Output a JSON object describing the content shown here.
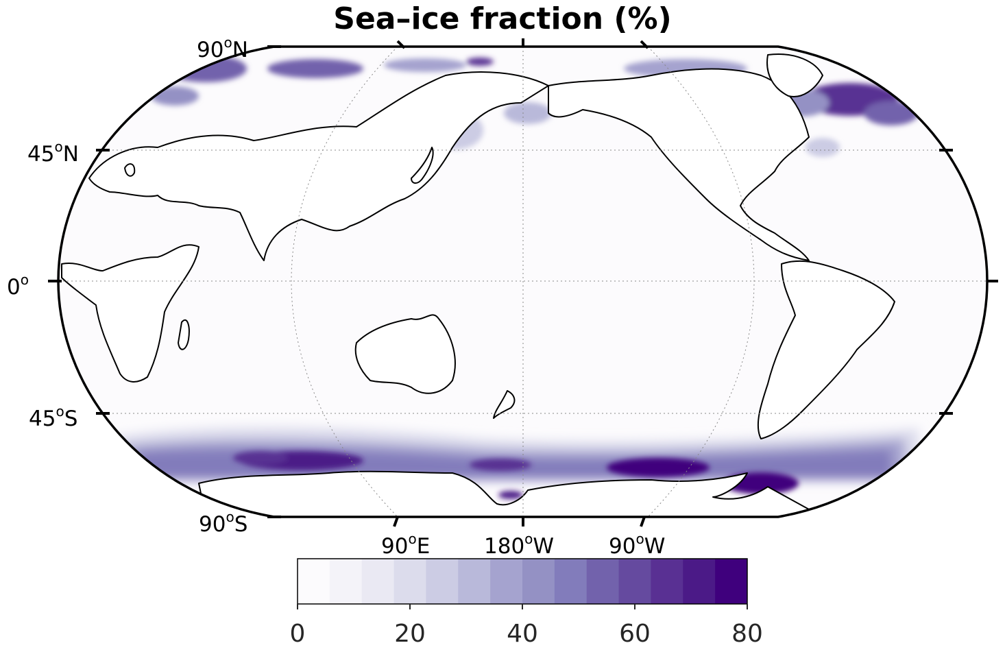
{
  "title": "Sea–ice fraction (%)",
  "latitude_labels": [
    {
      "deg": "90",
      "hemi": "N"
    },
    {
      "deg": "45",
      "hemi": "N"
    },
    {
      "deg": "0",
      "hemi": ""
    },
    {
      "deg": "45",
      "hemi": "S"
    },
    {
      "deg": "90",
      "hemi": "S"
    }
  ],
  "longitude_labels": [
    {
      "deg": "90",
      "hemi": "E"
    },
    {
      "deg": "180",
      "hemi": "W"
    },
    {
      "deg": "90",
      "hemi": "W"
    }
  ],
  "projection": "Robinson, centered on 180°",
  "colormap": "Purples",
  "colors": [
    "#fcfbfd",
    "#f4f3f9",
    "#eae9f3",
    "#dcdcec",
    "#ccccE4",
    "#b9b9da",
    "#a5a3cf",
    "#9491c4",
    "#827cbb",
    "#7262ac",
    "#654a9f",
    "#593093",
    "#4b1a87",
    "#3f007d"
  ],
  "colorbar": {
    "min": 0,
    "max": 80,
    "levels": 15,
    "ticks": [
      "0",
      "20",
      "40",
      "60",
      "80"
    ]
  },
  "chart_data": {
    "type": "heatmap",
    "title": "Sea–ice fraction (%)",
    "value_range": [
      0,
      80
    ],
    "features": [
      {
        "region": "Southern Ocean band ~55–70°S",
        "value_range": [
          20,
          80
        ]
      },
      {
        "region": "Weddell Sea / South Atlantic sector ~60–70°S",
        "value_range": [
          60,
          80
        ]
      },
      {
        "region": "Ross Sea / Pacific sector ~65–70°S",
        "value_range": [
          60,
          80
        ]
      },
      {
        "region": "Indian Ocean sector ~60–65°S",
        "value_range": [
          60,
          80
        ]
      },
      {
        "region": "Labrador Sea / Baffin Bay",
        "value_range": [
          50,
          80
        ]
      },
      {
        "region": "Greenland Sea / Arctic margins",
        "value_range": [
          40,
          80
        ]
      },
      {
        "region": "Sea of Okhotsk",
        "value_range": [
          20,
          40
        ]
      },
      {
        "region": "Bering Sea",
        "value_range": [
          20,
          40
        ]
      },
      {
        "region": "Tropics and mid-latitudes",
        "value_range": [
          0,
          5
        ]
      }
    ]
  }
}
